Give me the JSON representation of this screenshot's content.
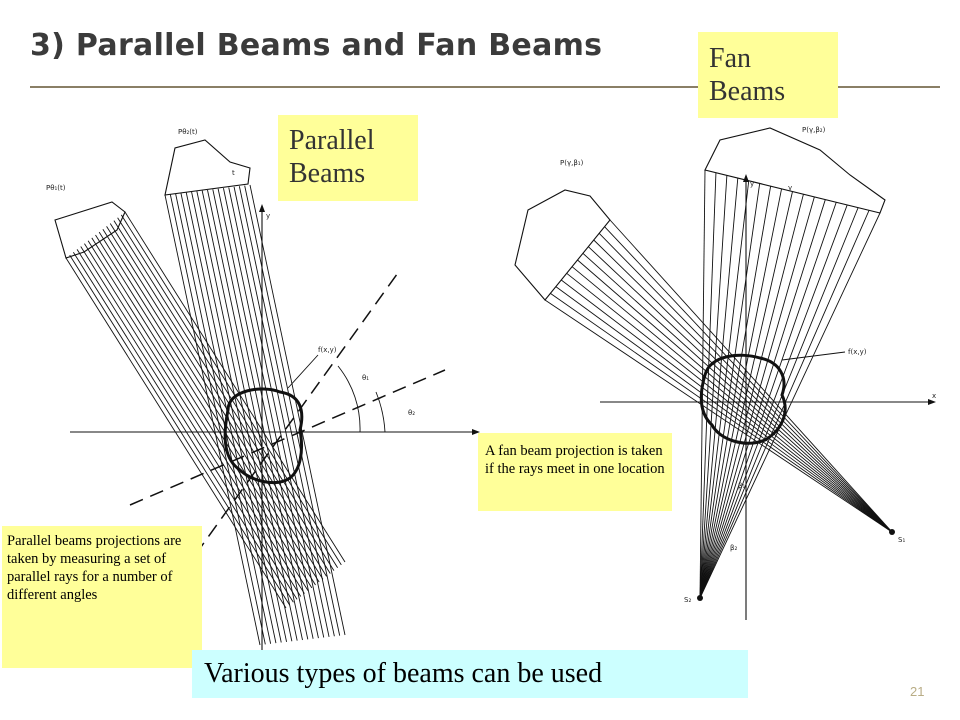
{
  "slide": {
    "title": "3) Parallel Beams and Fan Beams",
    "page_number": "21"
  },
  "labels": {
    "fan_beams": [
      "Fan",
      "Beams"
    ],
    "parallel_beams": [
      "Parallel",
      "Beams"
    ]
  },
  "notes": {
    "fan_beam": "A fan beam projection is taken if the rays meet in one location",
    "parallel_beam": "Parallel beams projections are taken by measuring a set of parallel rays for a number of different angles"
  },
  "caption": "Various types of beams can be used",
  "figures": {
    "parallel": {
      "projection_1": "Pθ₁(t)",
      "projection_2": "Pθ₂(t)",
      "axis_y": "y",
      "axis_t": "t",
      "object": "f(x,y)",
      "angle_1": "θ₁",
      "angle_2": "θ₂"
    },
    "fan": {
      "projection_1": "P(γ,β₁)",
      "projection_2": "P(γ,β₂)",
      "axis_y": "y",
      "axis_x": "x",
      "object": "f(x,y)",
      "source_1": "S₁",
      "source_2": "S₂",
      "angle_1": "β₁",
      "angle_2": "β₂",
      "ray_label": "γ"
    }
  },
  "colors": {
    "label_fill": "#ffff99",
    "caption_fill": "#ccffff",
    "title_rule": "#8a7f66"
  }
}
